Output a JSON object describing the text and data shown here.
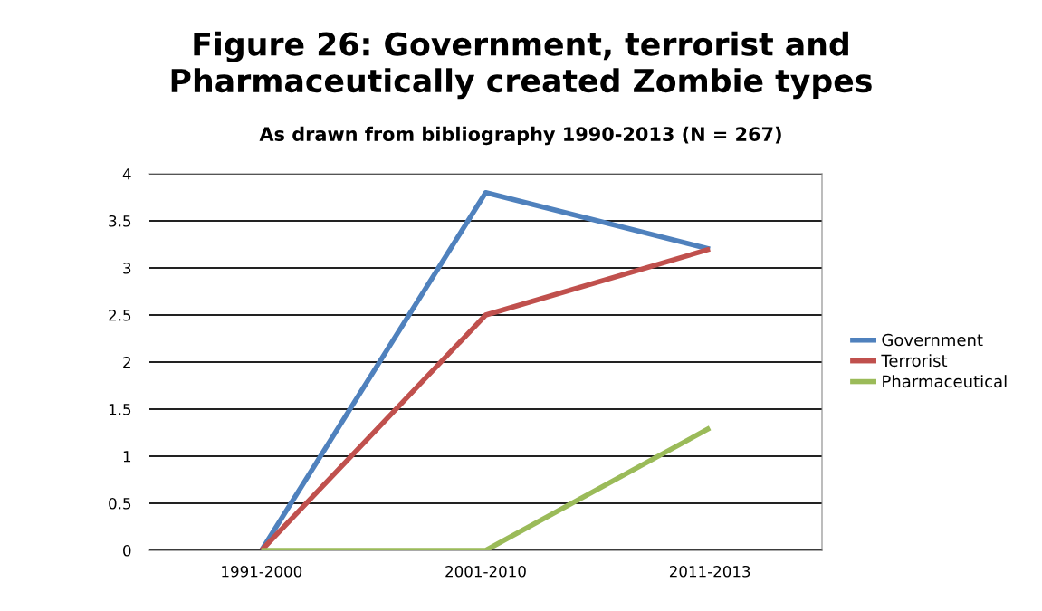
{
  "chart_data": {
    "type": "line",
    "title": "Figure 26: Government, terrorist and\nPharmaceutically created Zombie types",
    "subtitle": "As drawn from bibliography 1990-2013 (N = 267)",
    "categories": [
      "1991-2000",
      "2001-2010",
      "2011-2013"
    ],
    "series": [
      {
        "name": "Government",
        "color": "#4f81bd",
        "values": [
          0,
          3.8,
          3.2
        ]
      },
      {
        "name": "Terrorist",
        "color": "#c0504d",
        "values": [
          0,
          2.5,
          3.2
        ]
      },
      {
        "name": "Pharmaceutical",
        "color": "#9bbb59",
        "values": [
          0,
          0,
          1.3
        ]
      }
    ],
    "ylim": [
      0,
      4
    ],
    "yticks": [
      0,
      {
        "value": 0.5,
        "label": "0.5"
      },
      1,
      {
        "value": 1.5,
        "label": "1.5"
      },
      2,
      {
        "value": 2.5,
        "label": "2.5"
      },
      3,
      {
        "value": 3.5,
        "label": "3.5"
      },
      4
    ],
    "grid": "y",
    "legend": "right",
    "marker": "none",
    "line_style": "solid"
  }
}
